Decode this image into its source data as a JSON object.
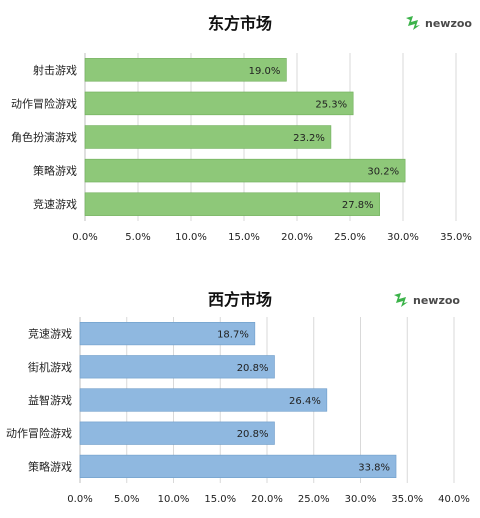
{
  "chart_data": [
    {
      "type": "bar",
      "orientation": "horizontal",
      "title": "东方市场",
      "logo_text": "newzoo",
      "categories": [
        "射击游戏",
        "动作冒险游戏",
        "角色扮演游戏",
        "策略游戏",
        "竞速游戏"
      ],
      "values": [
        19.0,
        25.3,
        23.2,
        30.2,
        27.8
      ],
      "value_labels": [
        "19.0%",
        "25.3%",
        "23.2%",
        "30.2%",
        "27.8%"
      ],
      "xlim": [
        0,
        35
      ],
      "xticks": [
        "0.0%",
        "5.0%",
        "10.0%",
        "15.0%",
        "20.0%",
        "25.0%",
        "30.0%",
        "35.0%"
      ],
      "grid": "vertical",
      "bar_color": "#8ec879",
      "bar_stroke": "#6fae5a"
    },
    {
      "type": "bar",
      "orientation": "horizontal",
      "title": "西方市场",
      "logo_text": "newzoo",
      "categories": [
        "竞速游戏",
        "街机游戏",
        "益智游戏",
        "动作冒险游戏",
        "策略游戏"
      ],
      "values": [
        18.7,
        20.8,
        26.4,
        20.8,
        33.8
      ],
      "value_labels": [
        "18.7%",
        "20.8%",
        "26.4%",
        "20.8%",
        "33.8%"
      ],
      "xlim": [
        0,
        40
      ],
      "xticks": [
        "0.0%",
        "5.0%",
        "10.0%",
        "15.0%",
        "20.0%",
        "25.0%",
        "30.0%",
        "35.0%",
        "40.0%"
      ],
      "grid": "vertical",
      "bar_color": "#8fb8e0",
      "bar_stroke": "#6d9cc9"
    }
  ],
  "colors": {
    "logo_green": "#3cb34a",
    "grid": "#d9d9d9",
    "axis": "#bfbfbf"
  }
}
